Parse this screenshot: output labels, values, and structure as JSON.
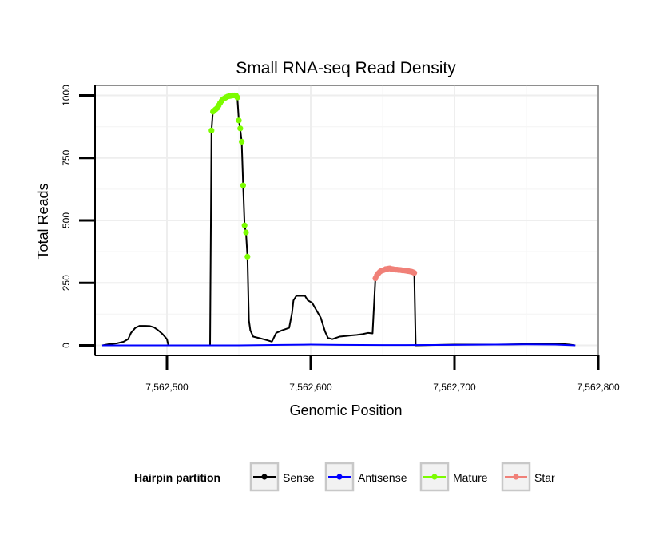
{
  "chart_data": {
    "type": "line",
    "title": "Small RNA-seq Read Density",
    "xlabel": "Genomic Position",
    "ylabel": "Total Reads",
    "xlim": [
      7562450,
      7562800
    ],
    "ylim": [
      -40,
      1040
    ],
    "x_ticks": [
      7562500,
      7562600,
      7562700,
      7562800
    ],
    "x_tick_labels": [
      "7,562,500",
      "7,562,600",
      "7,562,700",
      "7,562,800"
    ],
    "y_ticks": [
      0,
      250,
      500,
      750,
      1000
    ],
    "y_tick_labels": [
      "0",
      "250",
      "500",
      "750",
      "1000"
    ],
    "grid": true,
    "legend": {
      "title": "Hairpin partition",
      "placement": "bottom",
      "entries": [
        "Sense",
        "Antisense",
        "Mature",
        "Star"
      ]
    },
    "series": [
      {
        "name": "Sense",
        "color": "#000000",
        "style": "line",
        "points": [
          [
            7562455,
            0
          ],
          [
            7562460,
            5
          ],
          [
            7562465,
            8
          ],
          [
            7562470,
            15
          ],
          [
            7562473,
            25
          ],
          [
            7562475,
            50
          ],
          [
            7562478,
            70
          ],
          [
            7562481,
            78
          ],
          [
            7562485,
            78
          ],
          [
            7562488,
            77
          ],
          [
            7562491,
            72
          ],
          [
            7562494,
            60
          ],
          [
            7562497,
            45
          ],
          [
            7562500,
            25
          ],
          [
            7562501,
            0
          ],
          [
            7562520,
            0
          ],
          [
            7562530,
            0
          ],
          [
            7562531,
            860
          ],
          [
            7562532,
            940
          ],
          [
            7562534,
            948
          ],
          [
            7562536,
            960
          ],
          [
            7562538,
            978
          ],
          [
            7562540,
            990
          ],
          [
            7562542,
            995
          ],
          [
            7562544,
            999
          ],
          [
            7562546,
            1000
          ],
          [
            7562548,
            1000
          ],
          [
            7562549,
            990
          ],
          [
            7562550,
            900
          ],
          [
            7562551,
            865
          ],
          [
            7562552,
            815
          ],
          [
            7562553,
            640
          ],
          [
            7562554,
            480
          ],
          [
            7562555,
            450
          ],
          [
            7562556,
            355
          ],
          [
            7562557,
            100
          ],
          [
            7562558,
            60
          ],
          [
            7562560,
            35
          ],
          [
            7562565,
            28
          ],
          [
            7562570,
            20
          ],
          [
            7562573,
            15
          ],
          [
            7562576,
            50
          ],
          [
            7562580,
            60
          ],
          [
            7562585,
            70
          ],
          [
            7562587,
            130
          ],
          [
            7562588,
            180
          ],
          [
            7562590,
            198
          ],
          [
            7562596,
            198
          ],
          [
            7562598,
            180
          ],
          [
            7562601,
            170
          ],
          [
            7562604,
            140
          ],
          [
            7562607,
            110
          ],
          [
            7562610,
            55
          ],
          [
            7562612,
            30
          ],
          [
            7562615,
            25
          ],
          [
            7562620,
            35
          ],
          [
            7562625,
            38
          ],
          [
            7562628,
            40
          ],
          [
            7562632,
            42
          ],
          [
            7562636,
            45
          ],
          [
            7562640,
            50
          ],
          [
            7562643,
            48
          ],
          [
            7562645,
            270
          ],
          [
            7562650,
            295
          ],
          [
            7562655,
            308
          ],
          [
            7562660,
            303
          ],
          [
            7562665,
            300
          ],
          [
            7562670,
            295
          ],
          [
            7562672,
            290
          ],
          [
            7562673,
            0
          ],
          [
            7562690,
            2
          ],
          [
            7562700,
            3
          ],
          [
            7562720,
            3
          ],
          [
            7562730,
            3
          ],
          [
            7562750,
            5
          ],
          [
            7562760,
            8
          ],
          [
            7562770,
            8
          ],
          [
            7562780,
            3
          ],
          [
            7562784,
            0
          ]
        ]
      },
      {
        "name": "Antisense",
        "color": "#0000ff",
        "style": "line",
        "points": [
          [
            7562455,
            0
          ],
          [
            7562500,
            0
          ],
          [
            7562550,
            0
          ],
          [
            7562580,
            2
          ],
          [
            7562600,
            3
          ],
          [
            7562620,
            2
          ],
          [
            7562650,
            1
          ],
          [
            7562700,
            2
          ],
          [
            7562750,
            4
          ],
          [
            7562770,
            3
          ],
          [
            7562784,
            0
          ]
        ]
      },
      {
        "name": "Mature",
        "color": "#7cfc00",
        "style": "points",
        "points": [
          [
            7562531,
            860
          ],
          [
            7562532,
            935
          ],
          [
            7562533,
            940
          ],
          [
            7562534,
            945
          ],
          [
            7562535,
            950
          ],
          [
            7562536,
            960
          ],
          [
            7562537,
            970
          ],
          [
            7562538,
            978
          ],
          [
            7562539,
            985
          ],
          [
            7562540,
            988
          ],
          [
            7562541,
            992
          ],
          [
            7562542,
            995
          ],
          [
            7562543,
            997
          ],
          [
            7562544,
            998
          ],
          [
            7562545,
            999
          ],
          [
            7562546,
            1000
          ],
          [
            7562547,
            1000
          ],
          [
            7562548,
            1000
          ],
          [
            7562549,
            992
          ],
          [
            7562550,
            900
          ],
          [
            7562551,
            868
          ],
          [
            7562552,
            815
          ],
          [
            7562553,
            640
          ],
          [
            7562554,
            480
          ],
          [
            7562555,
            452
          ],
          [
            7562556,
            355
          ]
        ]
      },
      {
        "name": "Star",
        "color": "#f08078",
        "style": "points",
        "points": [
          [
            7562645,
            268
          ],
          [
            7562646,
            280
          ],
          [
            7562647,
            288
          ],
          [
            7562648,
            294
          ],
          [
            7562649,
            298
          ],
          [
            7562650,
            300
          ],
          [
            7562651,
            302
          ],
          [
            7562652,
            305
          ],
          [
            7562653,
            306
          ],
          [
            7562654,
            307
          ],
          [
            7562655,
            308
          ],
          [
            7562656,
            306
          ],
          [
            7562657,
            305
          ],
          [
            7562658,
            304
          ],
          [
            7562659,
            303
          ],
          [
            7562660,
            303
          ],
          [
            7562661,
            302
          ],
          [
            7562662,
            302
          ],
          [
            7562663,
            301
          ],
          [
            7562664,
            300
          ],
          [
            7562665,
            300
          ],
          [
            7562666,
            299
          ],
          [
            7562667,
            298
          ],
          [
            7562668,
            297
          ],
          [
            7562669,
            296
          ],
          [
            7562670,
            295
          ],
          [
            7562671,
            293
          ],
          [
            7562672,
            290
          ]
        ]
      }
    ]
  }
}
